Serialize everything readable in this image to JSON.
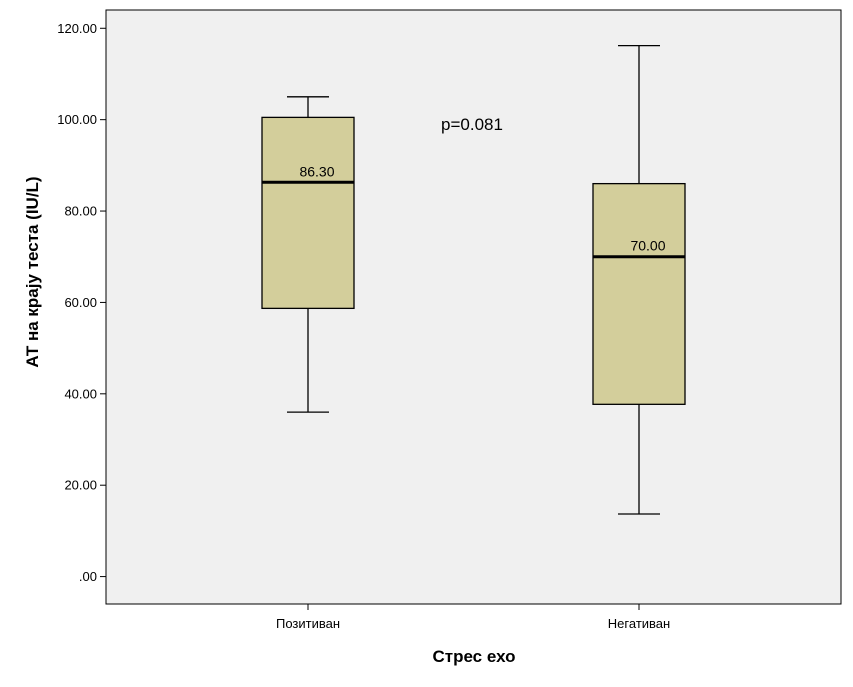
{
  "chart_data": {
    "type": "box",
    "xlabel": "Стрес ехо",
    "ylabel": "АТ на крају теста  (IU/L)",
    "ylim": [
      -6,
      124
    ],
    "yticks": [
      0,
      20,
      40,
      60,
      80,
      100,
      120
    ],
    "ytick_labels": [
      ".00",
      "20.00",
      "40.00",
      "60.00",
      "80.00",
      "100.00",
      "120.00"
    ],
    "grid": false,
    "categories": [
      "Позитиван",
      "Негативан"
    ],
    "boxes": [
      {
        "category": "Позитиван",
        "min": 36,
        "q1": 58.7,
        "median": 86.3,
        "q3": 100.5,
        "max": 105,
        "median_label": "86.30"
      },
      {
        "category": "Негативан",
        "min": 13.7,
        "q1": 37.7,
        "median": 70,
        "q3": 86,
        "max": 116.2,
        "median_label": "70.00"
      }
    ],
    "annotations": [
      {
        "text": "p=0.081"
      }
    ],
    "colors": {
      "plot_background": "#f0f0f0",
      "box_fill": "#d3ce9b",
      "line": "#000000"
    }
  }
}
